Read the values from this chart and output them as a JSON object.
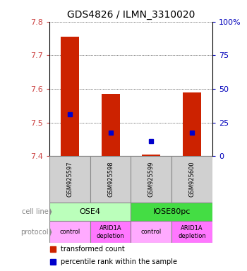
{
  "title": "GDS4826 / ILMN_3310020",
  "samples": [
    "GSM925597",
    "GSM925598",
    "GSM925599",
    "GSM925600"
  ],
  "bar_bottoms": [
    7.4,
    7.4,
    7.4,
    7.4
  ],
  "bar_tops": [
    7.755,
    7.585,
    7.405,
    7.59
  ],
  "bar_color": "#cc2200",
  "blue_y": [
    7.525,
    7.47,
    7.445,
    7.47
  ],
  "blue_color": "#0000cc",
  "ylim": [
    7.4,
    7.8
  ],
  "yticks_left": [
    7.4,
    7.5,
    7.6,
    7.7,
    7.8
  ],
  "yticks_right": [
    0,
    25,
    50,
    75,
    100
  ],
  "ytick_labels_right": [
    "0",
    "25",
    "50",
    "75",
    "100%"
  ],
  "left_tick_color": "#cc4444",
  "right_tick_color": "#0000bb",
  "grid_yticks": [
    7.5,
    7.6,
    7.7,
    7.8
  ],
  "cell_line_labels": [
    "OSE4",
    "IOSE80pc"
  ],
  "cell_line_spans": [
    [
      0,
      2
    ],
    [
      2,
      4
    ]
  ],
  "cell_line_colors": [
    "#bbffbb",
    "#44dd44"
  ],
  "protocol_labels": [
    "control",
    "ARID1A\ndepletion",
    "control",
    "ARID1A\ndepletion"
  ],
  "protocol_colors": [
    "#ffaaff",
    "#ff77ff",
    "#ffaaff",
    "#ff77ff"
  ],
  "legend_red_label": "transformed count",
  "legend_blue_label": "percentile rank within the sample",
  "bar_width": 0.45,
  "sample_box_color": "#d0d0d0",
  "label_color": "#888888"
}
